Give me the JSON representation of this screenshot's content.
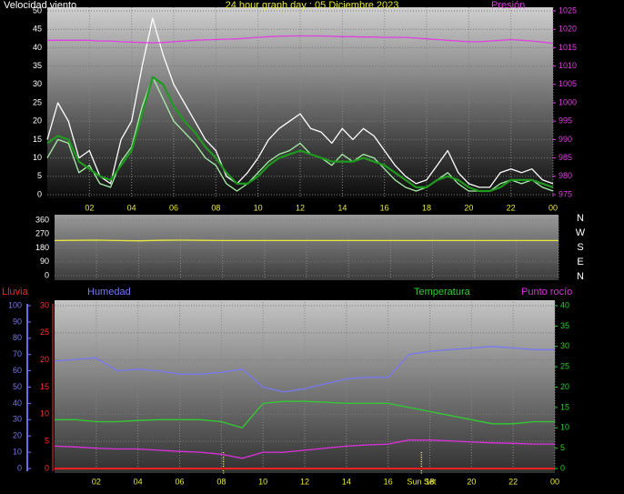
{
  "chart_data": [
    {
      "type": "line",
      "title": "24 hour graph day : 05 Diciembre 2023",
      "y_label": "Velocidad viento",
      "y2_label": "Presión",
      "x": [
        0,
        0.5,
        1,
        1.5,
        2,
        2.5,
        3,
        3.5,
        4,
        4.5,
        5,
        5.5,
        6,
        6.5,
        7,
        7.5,
        8,
        8.5,
        9,
        9.5,
        10,
        10.5,
        11,
        11.5,
        12,
        12.5,
        13,
        13.5,
        14,
        14.5,
        15,
        15.5,
        16,
        16.5,
        17,
        17.5,
        18,
        18.5,
        19,
        19.5,
        20,
        20.5,
        21,
        21.5,
        22,
        22.5,
        23,
        23.5,
        24
      ],
      "xlim": [
        0,
        24
      ],
      "xticks": [
        {
          "value": 2,
          "label": "02"
        },
        {
          "value": 4,
          "label": "04"
        },
        {
          "value": 6,
          "label": "06"
        },
        {
          "value": 8,
          "label": "08"
        },
        10,
        12,
        14,
        16,
        18,
        20,
        22,
        {
          "value": 24,
          "label": "00"
        }
      ],
      "ylim": [
        0,
        50
      ],
      "yticks": [
        0,
        5,
        10,
        15,
        20,
        25,
        30,
        35,
        40,
        45,
        50
      ],
      "y2lim": [
        975,
        1025
      ],
      "y2ticks": [
        975,
        980,
        985,
        990,
        995,
        1000,
        1005,
        1010,
        1015,
        1020,
        1025
      ],
      "grid": true,
      "series": [
        {
          "color": "#ffffff",
          "values": [
            15,
            25,
            20,
            10,
            12,
            5,
            3,
            15,
            20,
            35,
            48,
            38,
            30,
            25,
            20,
            15,
            12,
            5,
            3,
            6,
            10,
            15,
            18,
            20,
            22,
            18,
            17,
            14,
            18,
            15,
            18,
            16,
            12,
            8,
            5,
            3,
            4,
            8,
            12,
            6,
            3,
            2,
            2,
            6,
            7,
            6,
            7,
            4,
            3
          ]
        },
        {
          "color": "#a8f0a8",
          "values": [
            10,
            15,
            14,
            6,
            8,
            3,
            2,
            9,
            13,
            24,
            32,
            26,
            20,
            17,
            14,
            10,
            8,
            3,
            1,
            3,
            6,
            9,
            11,
            12,
            14,
            11,
            10,
            8,
            11,
            9,
            11,
            10,
            7,
            4,
            2,
            1,
            2,
            4,
            6,
            3,
            1,
            1,
            1,
            3,
            4,
            3,
            4,
            2,
            1
          ]
        },
        {
          "color": "#1f9a1f",
          "values": [
            14,
            16,
            15,
            9,
            7,
            5,
            4,
            8,
            12,
            22,
            32,
            30,
            24,
            20,
            17,
            13,
            10,
            6,
            3,
            3,
            5,
            8,
            10,
            11,
            12,
            11,
            10,
            9,
            9,
            9,
            10,
            9,
            8,
            6,
            4,
            2,
            2,
            4,
            5,
            4,
            2,
            1,
            1,
            2,
            4,
            4,
            4,
            3,
            2
          ]
        },
        {
          "color": "#e040e0",
          "axis": "y2",
          "values": [
            1017,
            1017,
            1017,
            1017,
            1017,
            1016.8,
            1016.8,
            1016.6,
            1016.5,
            1016.4,
            1016.3,
            1016.4,
            1016.6,
            1016.8,
            1017,
            1017.1,
            1017.2,
            1017.3,
            1017.4,
            1017.6,
            1017.8,
            1018,
            1018.1,
            1018.2,
            1018.2,
            1018.2,
            1018.2,
            1018.1,
            1018,
            1018,
            1017.9,
            1017.9,
            1017.8,
            1017.8,
            1017.8,
            1017.6,
            1017.4,
            1017.2,
            1017,
            1016.8,
            1016.6,
            1016.6,
            1016.8,
            1017,
            1017.2,
            1017,
            1016.8,
            1016.5,
            1016.2
          ]
        }
      ]
    },
    {
      "type": "line",
      "x": [
        0,
        1,
        2,
        3,
        4,
        5,
        6,
        7,
        8,
        9,
        10,
        11,
        12,
        13,
        14,
        15,
        16,
        17,
        18,
        19,
        20,
        21,
        22,
        23,
        24
      ],
      "xlim": [
        0,
        24
      ],
      "xticks": [
        {
          "value": 2,
          "label": "02"
        },
        {
          "value": 4,
          "label": "04"
        },
        {
          "value": 6,
          "label": "06"
        },
        {
          "value": 8,
          "label": "08"
        },
        10,
        12,
        14,
        16,
        18,
        20,
        22,
        {
          "value": 24,
          "label": "00"
        }
      ],
      "ylim": [
        0,
        360
      ],
      "yticks": [
        0,
        90,
        180,
        270,
        360
      ],
      "direction_labels": [
        "N",
        "W",
        "S",
        "E",
        "N"
      ],
      "grid": true,
      "series": [
        {
          "color": "#e8e840",
          "values": [
            228,
            229,
            230,
            228,
            226,
            229,
            230,
            229,
            228,
            228,
            228,
            228,
            228,
            228,
            228,
            228,
            228,
            228,
            228,
            228,
            228,
            228,
            228,
            228,
            228
          ]
        }
      ]
    },
    {
      "type": "line",
      "x": [
        0,
        1,
        2,
        3,
        4,
        5,
        6,
        7,
        8,
        9,
        10,
        11,
        12,
        13,
        14,
        15,
        16,
        17,
        18,
        19,
        20,
        21,
        22,
        23,
        24
      ],
      "xlim": [
        0,
        24
      ],
      "xticks": [
        {
          "value": 2,
          "label": "02"
        },
        {
          "value": 4,
          "label": "04"
        },
        {
          "value": 6,
          "label": "06"
        },
        {
          "value": 8,
          "label": "08"
        },
        10,
        12,
        14,
        16,
        18,
        20,
        22,
        {
          "value": 24,
          "label": "00"
        }
      ],
      "ylim": [
        0,
        30
      ],
      "yticks": [
        0,
        5,
        10,
        15,
        20,
        25,
        30
      ],
      "y3lim": [
        0,
        100
      ],
      "y3ticks": [
        0,
        10,
        20,
        30,
        40,
        50,
        60,
        70,
        80,
        90,
        100
      ],
      "y2lim": [
        0,
        40
      ],
      "y2ticks": [
        0,
        5,
        10,
        15,
        20,
        25,
        30,
        35,
        40
      ],
      "grid": true,
      "sun_lines": [
        8.1,
        17.6
      ],
      "sun_label": "Sun Set",
      "series": [
        {
          "name": "Lluvia",
          "color": "#ff2020",
          "values": [
            0,
            0,
            0,
            0,
            0,
            0,
            0,
            0,
            0,
            0,
            0,
            0,
            0,
            0,
            0,
            0,
            0,
            0,
            0,
            0,
            0,
            0,
            0,
            0,
            0
          ]
        },
        {
          "name": "Humedad",
          "color": "#7878f0",
          "axis": "y3",
          "values": [
            66,
            67,
            68,
            60,
            61,
            60,
            58,
            58,
            59,
            61,
            50,
            47,
            49,
            52,
            55,
            56,
            56,
            70,
            72,
            73,
            74,
            75,
            74,
            73,
            73
          ]
        },
        {
          "name": "Temperatura",
          "color": "#30cc30",
          "axis": "y2",
          "values": [
            12,
            12,
            11.5,
            11.5,
            11.8,
            12,
            12,
            12,
            11.5,
            10,
            16,
            16.5,
            16.5,
            16.3,
            16,
            16,
            16,
            15,
            14,
            13,
            12,
            11,
            11,
            11.5,
            11.5
          ]
        },
        {
          "name": "Punto rocío",
          "color": "#dd30dd",
          "axis": "y2",
          "values": [
            5.5,
            5.3,
            5,
            4.8,
            4.8,
            4.5,
            4.2,
            4,
            3.5,
            2.5,
            4,
            4,
            4.5,
            5,
            5.5,
            5.8,
            6,
            7,
            7,
            6.8,
            6.5,
            6.3,
            6.2,
            6,
            6
          ]
        }
      ]
    }
  ]
}
